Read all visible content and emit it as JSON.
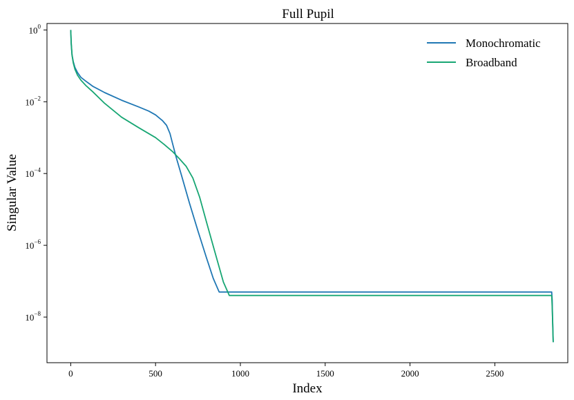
{
  "chart_data": {
    "type": "line",
    "title": "Full Pupil",
    "xlabel": "Index",
    "ylabel": "Singular Value",
    "xlim": [
      -140,
      2930
    ],
    "ylim_exp": [
      -9.27,
      0.18
    ],
    "yscale": "log",
    "xticks": [
      0,
      500,
      1000,
      1500,
      2000,
      2500
    ],
    "yticks": [
      {
        "base": "10",
        "exp": "0",
        "value": 1
      },
      {
        "base": "10",
        "exp": "−2",
        "value": 0.01
      },
      {
        "base": "10",
        "exp": "−4",
        "value": 0.0001
      },
      {
        "base": "10",
        "exp": "−6",
        "value": 1e-06
      },
      {
        "base": "10",
        "exp": "−8",
        "value": 1e-08
      }
    ],
    "grid": false,
    "legend_position": "top-right",
    "series": [
      {
        "name": "Monochromatic",
        "color": "#1f77b4",
        "x": [
          0,
          3,
          8,
          15,
          25,
          40,
          60,
          90,
          130,
          200,
          300,
          400,
          460,
          500,
          540,
          565,
          585,
          600,
          620,
          650,
          700,
          750,
          800,
          840,
          875,
          900,
          1500,
          2000,
          2500,
          2835,
          2838,
          2840,
          2842,
          2844
        ],
        "y": [
          1,
          0.4,
          0.2,
          0.13,
          0.09,
          0.065,
          0.048,
          0.037,
          0.027,
          0.018,
          0.011,
          0.0072,
          0.0055,
          0.0043,
          0.003,
          0.0022,
          0.0013,
          0.0007,
          0.0003,
          0.0001,
          1.5e-05,
          2.5e-06,
          4.5e-07,
          1.2e-07,
          5e-08,
          5e-08,
          5e-08,
          5e-08,
          5e-08,
          5e-08,
          3e-08,
          1e-08,
          5e-09,
          2e-09
        ]
      },
      {
        "name": "Broadband",
        "color": "#17a673",
        "x": [
          0,
          3,
          8,
          15,
          25,
          40,
          60,
          90,
          130,
          200,
          300,
          400,
          500,
          550,
          600,
          640,
          680,
          720,
          760,
          800,
          850,
          900,
          935,
          940,
          1500,
          2000,
          2500,
          2835,
          2838,
          2840,
          2842,
          2844
        ],
        "y": [
          1,
          0.45,
          0.2,
          0.12,
          0.08,
          0.055,
          0.04,
          0.028,
          0.019,
          0.009,
          0.0037,
          0.0019,
          0.001,
          0.00065,
          0.00041,
          0.00026,
          0.00016,
          7.5e-05,
          2.2e-05,
          4.5e-06,
          6.5e-07,
          9.5e-08,
          4e-08,
          4e-08,
          4e-08,
          4e-08,
          4e-08,
          4e-08,
          2e-08,
          1e-08,
          4e-09,
          2e-09
        ]
      }
    ]
  }
}
